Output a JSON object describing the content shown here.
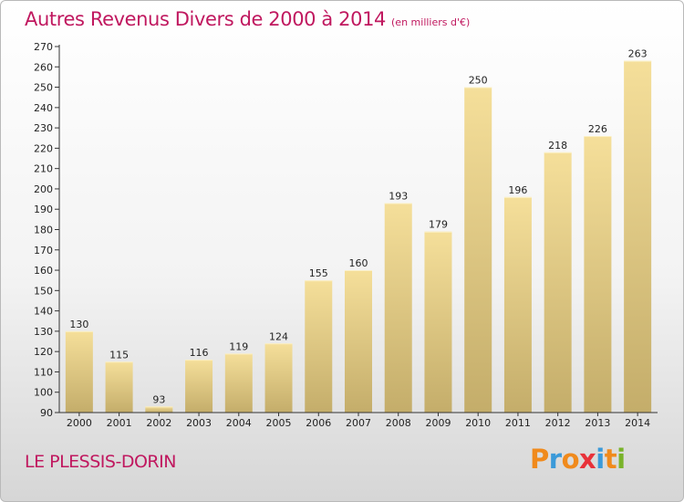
{
  "chart_data": {
    "type": "bar",
    "title": "Autres Revenus Divers de 2000 à 2014",
    "unit": "(en milliers d'€)",
    "categories": [
      "2000",
      "2001",
      "2002",
      "2003",
      "2004",
      "2005",
      "2006",
      "2007",
      "2008",
      "2009",
      "2010",
      "2011",
      "2012",
      "2013",
      "2014"
    ],
    "values": [
      130,
      115,
      93,
      116,
      119,
      124,
      155,
      160,
      193,
      179,
      250,
      196,
      218,
      226,
      263
    ],
    "ylim": [
      90,
      270
    ],
    "yticks": [
      90,
      100,
      110,
      120,
      130,
      140,
      150,
      160,
      170,
      180,
      190,
      200,
      210,
      220,
      230,
      240,
      250,
      260,
      270
    ],
    "grid": false,
    "legend": "none",
    "colors": {
      "bar_light": "#f5df9a",
      "bar_dark": "#c4ad6a",
      "axis": "#333333"
    }
  },
  "footer": {
    "commune": "LE PLESSIS-DORIN",
    "logo_text": "Proxiti"
  },
  "colors": {
    "title": "#c0185f",
    "logo": [
      "#f08a1c",
      "#3b9ad9",
      "#f08a1c",
      "#e8323a",
      "#3b9ad9",
      "#f08a1c",
      "#79b32a"
    ]
  }
}
